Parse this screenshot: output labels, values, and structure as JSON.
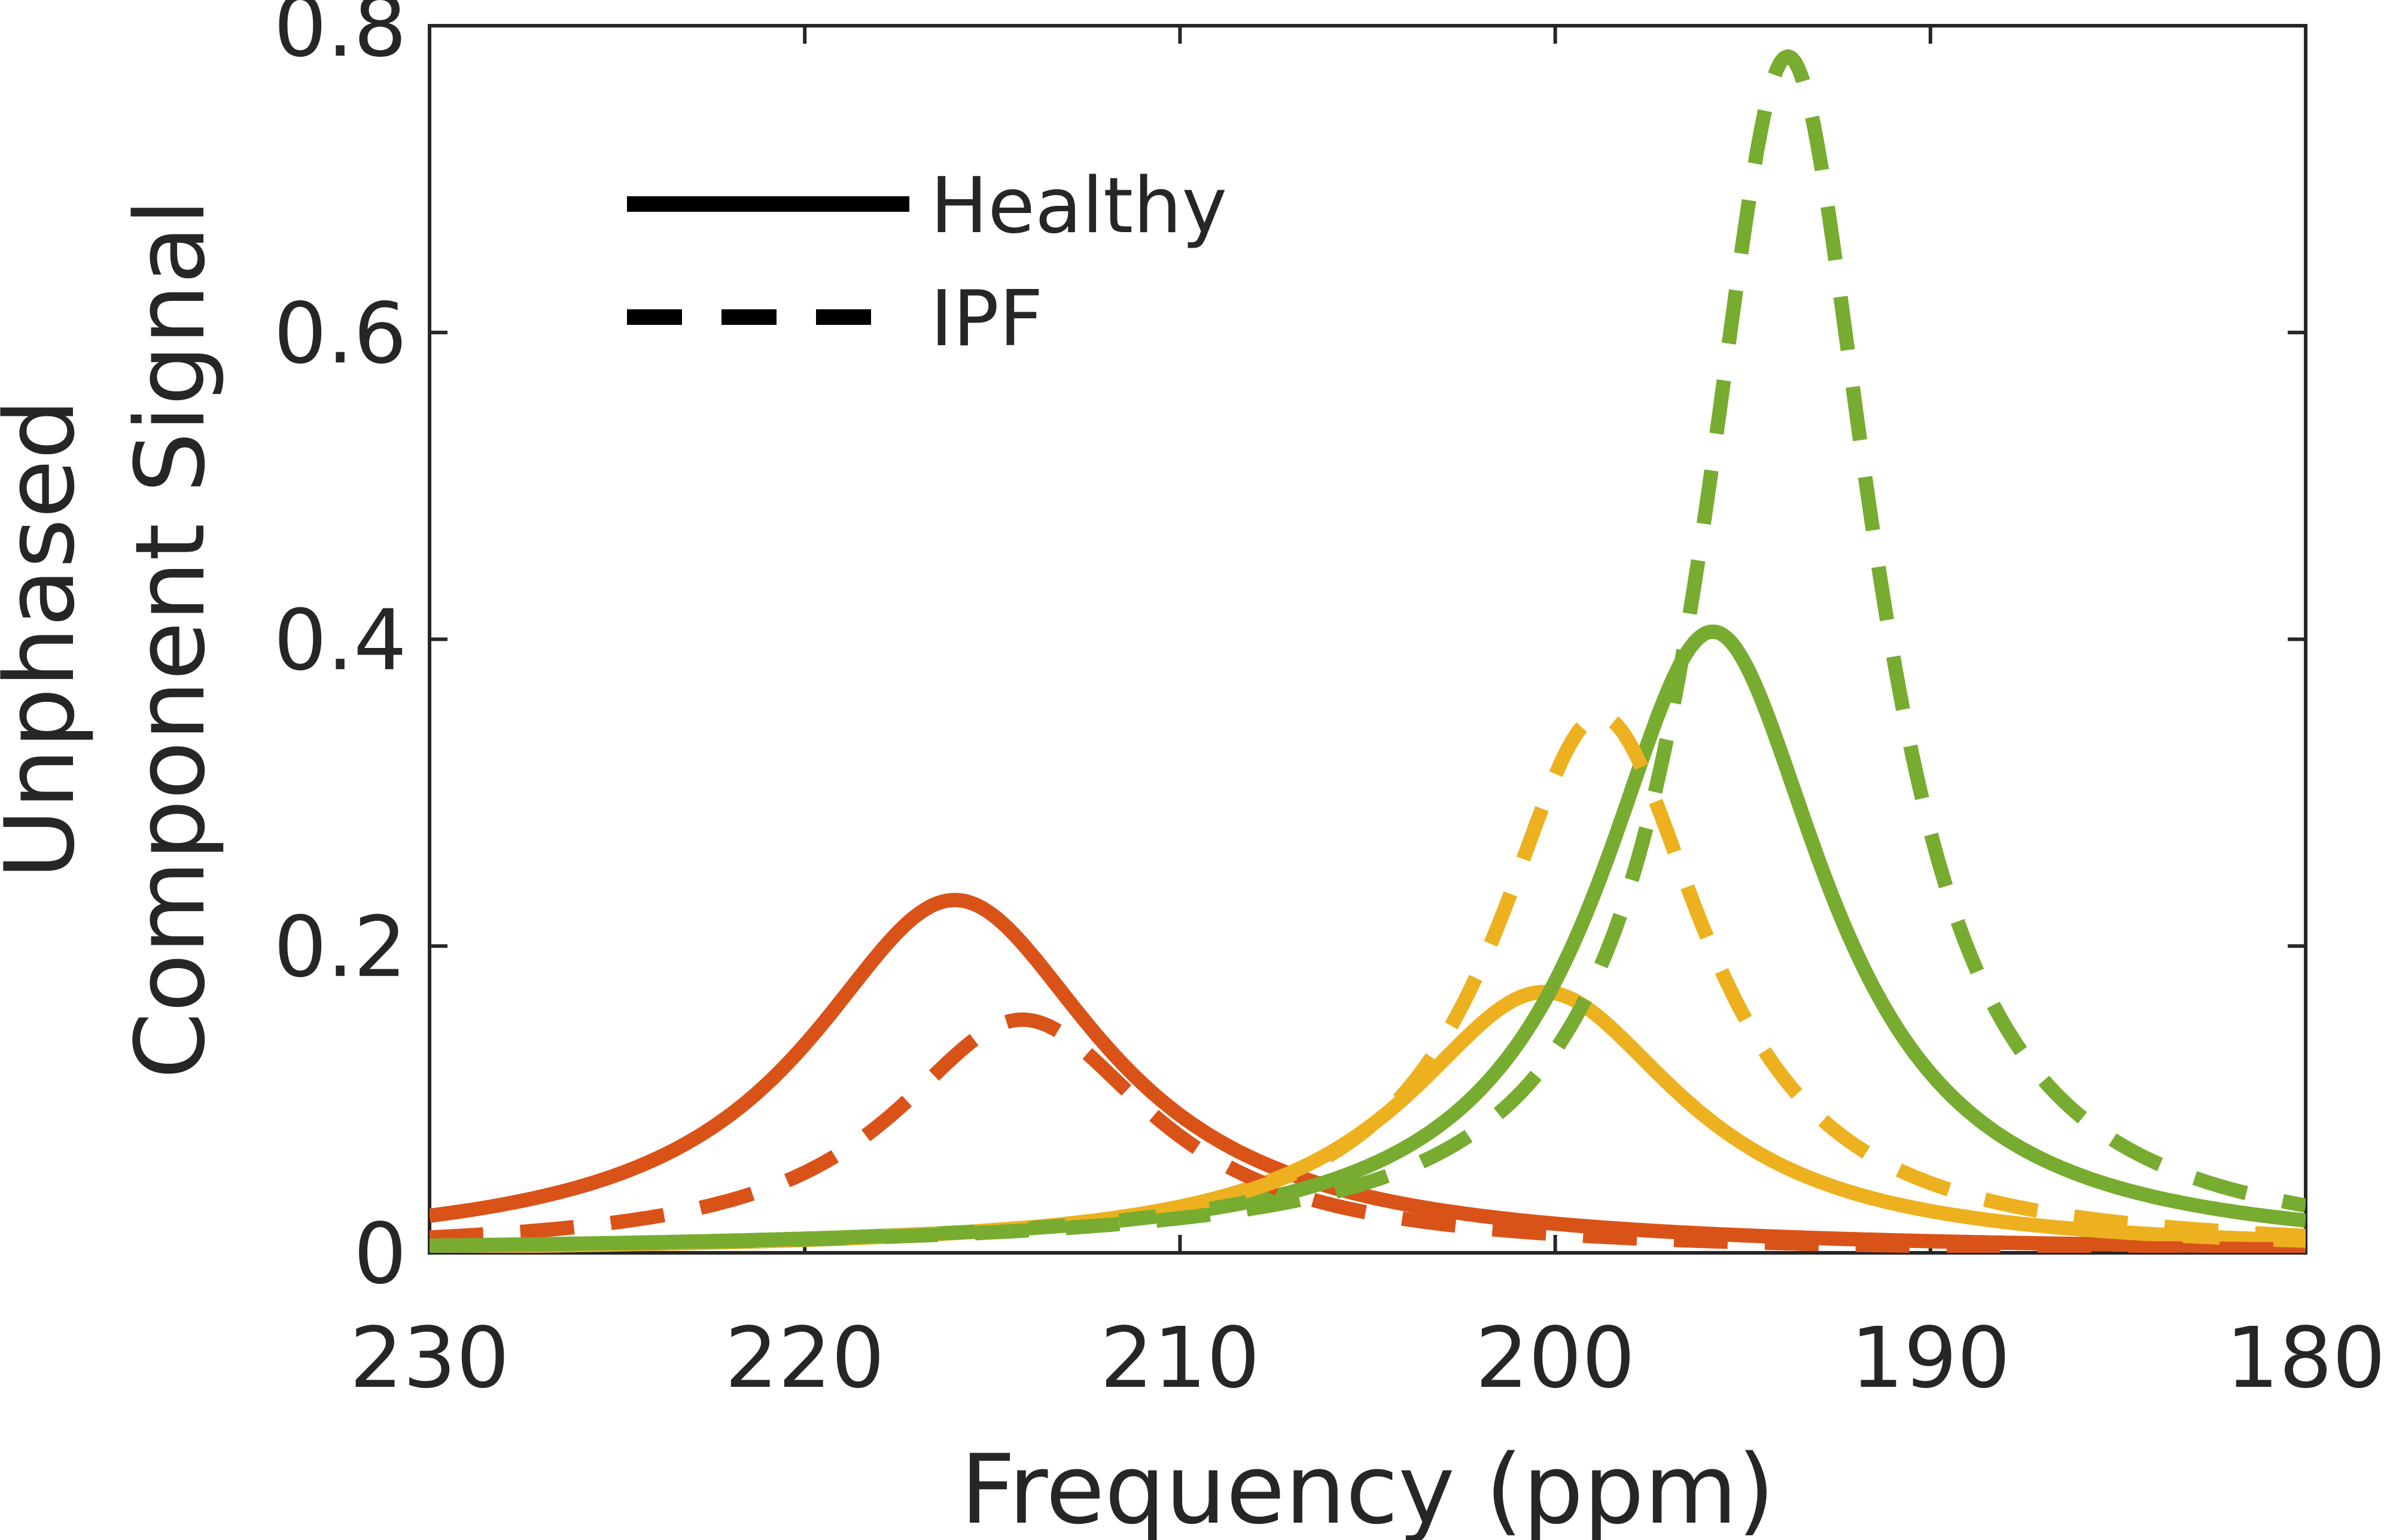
{
  "chart_data": {
    "type": "line",
    "title": "",
    "xlabel": "Frequency (ppm)",
    "ylabel_lines": [
      "Unphased",
      "Component Signal"
    ],
    "xlim": [
      230,
      180
    ],
    "x_reversed": true,
    "ylim": [
      0,
      0.8
    ],
    "x_ticks": [
      230,
      220,
      210,
      200,
      190,
      180
    ],
    "x_tick_labels": [
      "230",
      "220",
      "210",
      "200",
      "190",
      "180"
    ],
    "y_ticks": [
      0,
      0.2,
      0.4,
      0.6,
      0.8
    ],
    "y_tick_labels": [
      "0",
      "0.2",
      "0.4",
      "0.6",
      "0.8"
    ],
    "grid": false,
    "legend": {
      "position": "top-left",
      "entries": [
        {
          "label": "Healthy",
          "style": "solid"
        },
        {
          "label": "IPF",
          "style": "dashed"
        }
      ]
    },
    "series": [
      {
        "name": "Healthy peak 1",
        "group": "Healthy",
        "style": "solid",
        "color": "#D95319",
        "model": "lorentzian",
        "center": 216.0,
        "amplitude": 0.23,
        "hwhm": 4.8,
        "baseline": 0.0
      },
      {
        "name": "Healthy peak 2",
        "group": "Healthy",
        "style": "solid",
        "color": "#EDB120",
        "model": "lorentzian",
        "center": 200.3,
        "amplitude": 0.17,
        "hwhm": 4.5,
        "baseline": 0.0
      },
      {
        "name": "Healthy peak 3",
        "group": "Healthy",
        "style": "solid",
        "color": "#77AC30",
        "model": "lorentzian",
        "center": 195.8,
        "amplitude": 0.405,
        "hwhm": 3.7,
        "baseline": 0.0
      },
      {
        "name": "IPF peak 1",
        "group": "IPF",
        "style": "dashed",
        "color": "#D95319",
        "model": "lorentzian",
        "center": 214.2,
        "amplitude": 0.152,
        "hwhm": 4.2,
        "baseline": 0.0
      },
      {
        "name": "IPF peak 2",
        "group": "IPF",
        "style": "dashed",
        "color": "#EDB120",
        "model": "lorentzian",
        "center": 198.8,
        "amplitude": 0.35,
        "hwhm": 3.4,
        "baseline": 0.0
      },
      {
        "name": "IPF peak 3",
        "group": "IPF",
        "style": "dashed",
        "color": "#77AC30",
        "model": "lorentzian",
        "center": 193.8,
        "amplitude": 0.78,
        "hwhm": 2.8,
        "baseline": 0.0
      }
    ]
  }
}
